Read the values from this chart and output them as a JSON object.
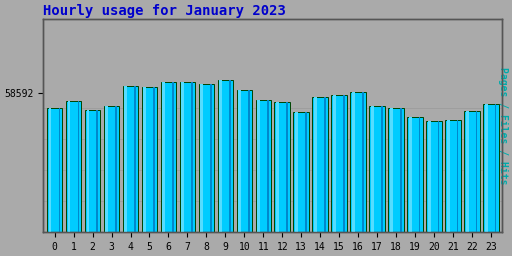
{
  "title": "Hourly usage for January 2023",
  "hours": [
    0,
    1,
    2,
    3,
    4,
    5,
    6,
    7,
    8,
    9,
    10,
    11,
    12,
    13,
    14,
    15,
    16,
    17,
    18,
    19,
    20,
    21,
    22,
    23
  ],
  "values": [
    58200,
    58380,
    58150,
    58270,
    58780,
    58740,
    58870,
    58870,
    58840,
    58920,
    58680,
    58420,
    58370,
    58100,
    58490,
    58540,
    58610,
    58260,
    58210,
    57980,
    57880,
    57890,
    58120,
    58310
  ],
  "bar_color": "#00CCFF",
  "bar_left_stripe": "#55DDFF",
  "bar_right_stripe": "#0088CC",
  "bar_edge_color": "#004400",
  "background_color": "#AAAAAA",
  "plot_bg_color": "#AAAAAA",
  "title_color": "#0000CC",
  "ylabel": "Pages / Files / Hits",
  "ylabel_color": "#00AAAA",
  "ytick_label": "58592",
  "ytick_value": 58592,
  "ymin": 55000,
  "ymax": 60500,
  "title_fontsize": 10,
  "ylabel_fontsize": 7,
  "tick_fontsize": 7,
  "bar_width": 0.82
}
